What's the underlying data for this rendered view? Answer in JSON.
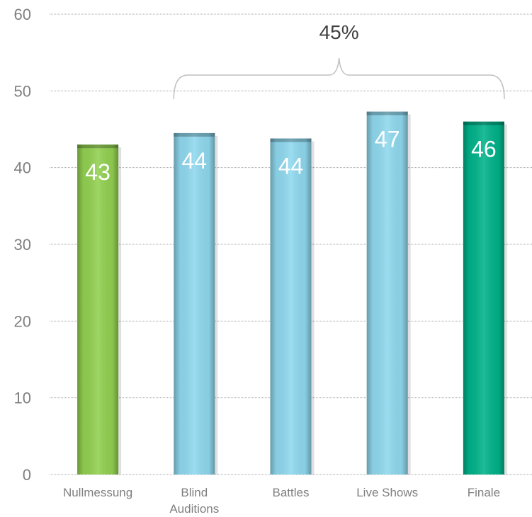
{
  "chart_data": {
    "type": "bar",
    "categories": [
      [
        "Nullmessung"
      ],
      [
        "Blind",
        "Auditions"
      ],
      [
        "Battles"
      ],
      [
        "Live Shows"
      ],
      [
        "Finale"
      ]
    ],
    "values": [
      43,
      44.5,
      43.8,
      47.3,
      46
    ],
    "data_labels": [
      "43",
      "44",
      "44",
      "47",
      "46"
    ],
    "bar_colors": [
      "#92d050",
      "#8fd8ee",
      "#8fd8ee",
      "#8fd8ee",
      "#00b38a"
    ],
    "ylim": [
      0,
      60
    ],
    "yticks": [
      "0",
      "10",
      "20",
      "30",
      "40",
      "50",
      "60"
    ],
    "grid": true,
    "annotation": {
      "text": "45%",
      "spans_categories": [
        1,
        4
      ]
    }
  }
}
